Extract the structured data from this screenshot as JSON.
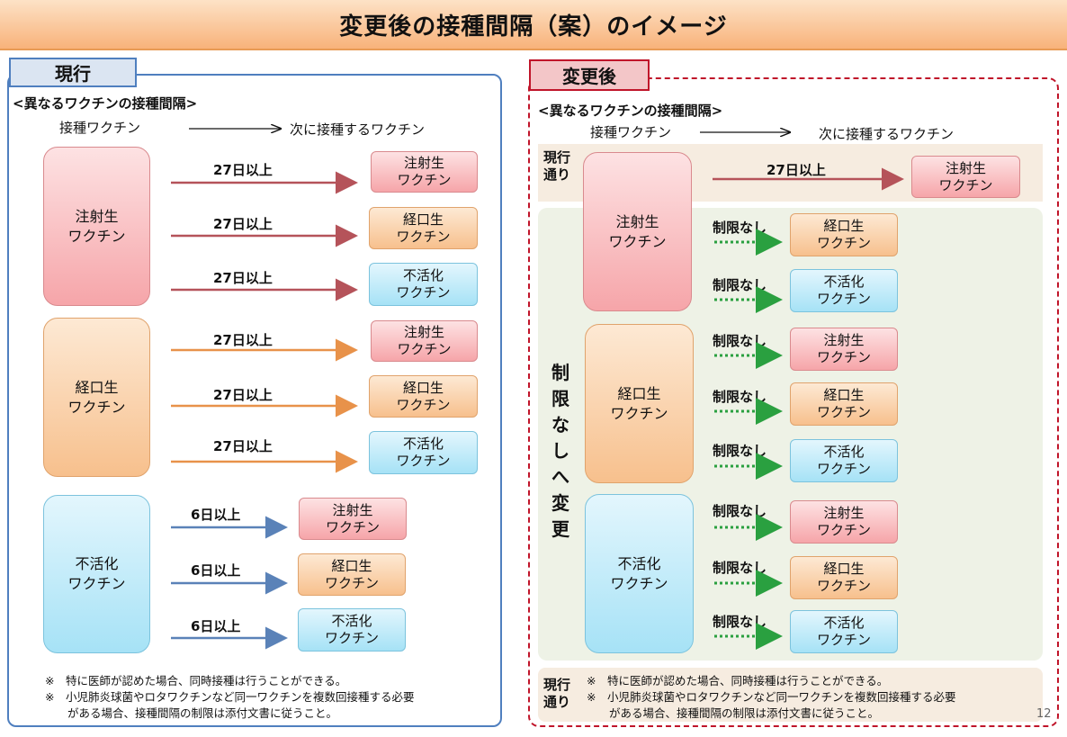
{
  "title": "変更後の接種間隔（案）のイメージ",
  "left": {
    "tab": "現行",
    "heading": "<異なるワクチンの接種間隔>",
    "col_from": "接種ワクチン",
    "col_to": "次に接種するワクチン",
    "sources": [
      "注射生\nワクチン",
      "経口生\nワクチン",
      "不活化\nワクチン"
    ],
    "targets": [
      "注射生\nワクチン",
      "経口生\nワクチン",
      "不活化\nワクチン"
    ],
    "intervals": [
      "27日以上",
      "27日以上",
      "27日以上",
      "27日以上",
      "27日以上",
      "27日以上",
      "6日以上",
      "6日以上",
      "6日以上"
    ],
    "notes": [
      "※　特に医師が認めた場合、同時接種は行うことができる。",
      "※　小児肺炎球菌やロタワクチンなど同一ワクチンを複数回接種する必要",
      "　　がある場合、接種間隔の制限は添付文書に従うこと。"
    ]
  },
  "right": {
    "tab": "変更後",
    "heading": "<異なるワクチンの接種間隔>",
    "col_from": "接種ワクチン",
    "col_to": "次に接種するワクチン",
    "current_label": "現行\n通り",
    "current_interval": "27日以上",
    "vertical_label": "制限なしへ変更",
    "no_limit": "制限なし",
    "sources": [
      "注射生\nワクチン",
      "経口生\nワクチン",
      "不活化\nワクチン"
    ],
    "targets": [
      "注射生\nワクチン",
      "経口生\nワクチン",
      "不活化\nワクチン"
    ],
    "bottom_label": "現行\n通り",
    "notes": [
      "※　特に医師が認めた場合、同時接種は行うことができる。",
      "※　小児肺炎球菌やロタワクチンなど同一ワクチンを複数回接種する必要",
      "　　がある場合、接種間隔の制限は添付文書に従うこと。"
    ],
    "page_number": "12"
  },
  "colors": {
    "arrow_pink": "#b5535a",
    "arrow_orange": "#e8924a",
    "arrow_blue": "#5a82b8",
    "arrow_green": "#2aa040",
    "dashed_border": "#c0152a"
  }
}
